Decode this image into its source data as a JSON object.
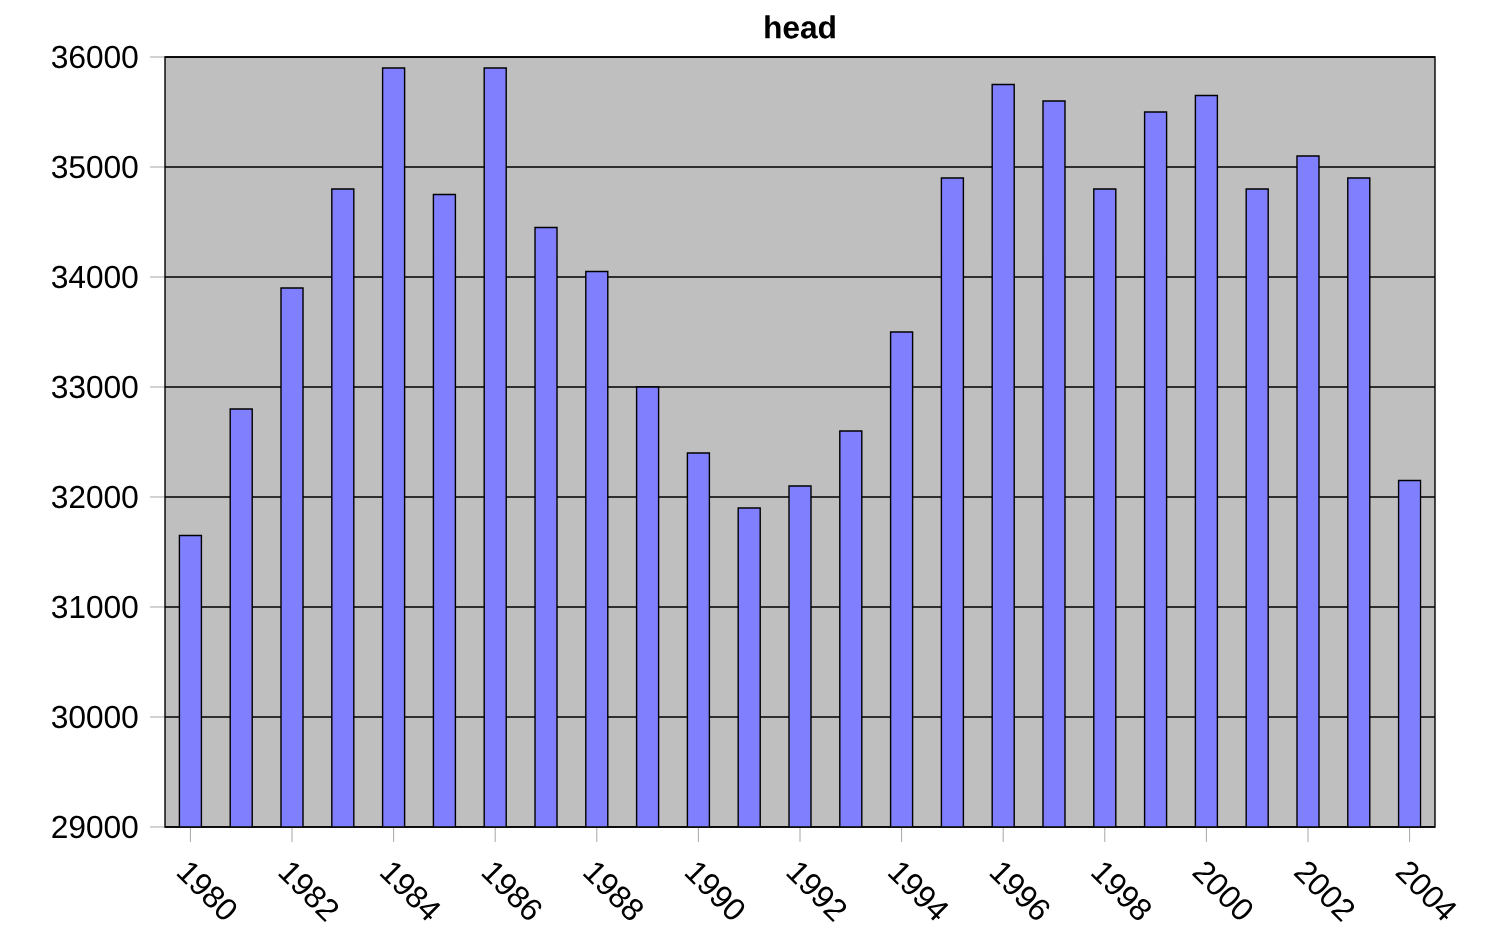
{
  "chart_data": {
    "type": "bar",
    "title": "head",
    "categories": [
      "1980",
      null,
      "1982",
      null,
      "1984",
      null,
      "1986",
      null,
      "1988",
      null,
      "1990",
      null,
      "1992",
      null,
      "1994",
      null,
      "1996",
      null,
      "1998",
      null,
      "2000",
      null,
      "2002",
      null,
      "2004"
    ],
    "values": [
      31650,
      32800,
      33900,
      34800,
      35900,
      34750,
      35900,
      34450,
      34050,
      33000,
      32400,
      31900,
      32100,
      32600,
      33500,
      34900,
      35750,
      35600,
      34800,
      35500,
      35650,
      34800,
      35100,
      34900,
      32150
    ],
    "color": "#8080ff",
    "ylim": [
      29000,
      36000
    ],
    "yticks": [
      29000,
      30000,
      31000,
      32000,
      33000,
      34000,
      35000,
      36000
    ],
    "grid": "y"
  }
}
